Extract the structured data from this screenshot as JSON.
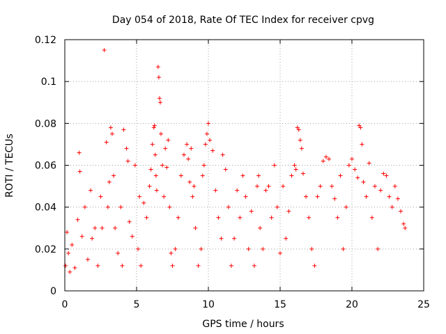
{
  "chart_data": {
    "type": "scatter",
    "title": "Day 054 of 2018, Rate Of TEC Index for receiver cpvg",
    "xlabel": "GPS time / hours",
    "ylabel": "ROTI / TECUs",
    "xlim": [
      0,
      25
    ],
    "ylim": [
      0,
      0.12
    ],
    "xticks": [
      0,
      5,
      10,
      15,
      20,
      25
    ],
    "yticks": [
      0,
      0.02,
      0.04,
      0.06,
      0.08,
      0.1,
      0.12
    ],
    "xtick_labels": [
      "0",
      "5",
      "10",
      "15",
      "20",
      "25"
    ],
    "ytick_labels": [
      "0",
      "0.02",
      "0.04",
      "0.06",
      "0.08",
      "0.1",
      "0.12"
    ],
    "grid": true,
    "marker": "+",
    "series_color": "#ff0000",
    "series": [
      {
        "name": "ROTI",
        "x": [
          0.05,
          0.15,
          0.25,
          0.35,
          0.5,
          0.7,
          0.9,
          1.0,
          1.05,
          1.2,
          1.4,
          1.6,
          1.8,
          1.9,
          2.1,
          2.3,
          2.5,
          2.6,
          2.75,
          2.9,
          3.0,
          3.1,
          3.2,
          3.3,
          3.4,
          3.5,
          3.7,
          3.9,
          4.0,
          4.1,
          4.3,
          4.4,
          4.5,
          4.7,
          4.9,
          5.1,
          5.2,
          5.3,
          5.5,
          5.7,
          5.9,
          6.0,
          6.1,
          6.2,
          6.25,
          6.3,
          6.35,
          6.4,
          6.5,
          6.55,
          6.6,
          6.65,
          6.7,
          6.8,
          6.9,
          7.0,
          7.1,
          7.2,
          7.3,
          7.4,
          7.5,
          7.7,
          7.9,
          8.1,
          8.3,
          8.5,
          8.6,
          8.7,
          8.8,
          8.9,
          9.0,
          9.1,
          9.3,
          9.5,
          9.6,
          9.7,
          9.8,
          9.9,
          10.0,
          10.1,
          10.3,
          10.5,
          10.7,
          10.9,
          11.0,
          11.2,
          11.4,
          11.6,
          11.8,
          12.0,
          12.2,
          12.4,
          12.6,
          12.8,
          13.0,
          13.2,
          13.4,
          13.5,
          13.6,
          13.8,
          14.0,
          14.2,
          14.4,
          14.6,
          14.8,
          15.0,
          15.2,
          15.4,
          15.6,
          15.8,
          16.0,
          16.1,
          16.2,
          16.3,
          16.4,
          16.5,
          16.6,
          16.8,
          17.0,
          17.2,
          17.4,
          17.6,
          17.8,
          18.0,
          18.2,
          18.4,
          18.6,
          18.8,
          19.0,
          19.2,
          19.4,
          19.6,
          19.8,
          20.0,
          20.2,
          20.4,
          20.5,
          20.6,
          20.7,
          20.8,
          21.0,
          21.2,
          21.4,
          21.6,
          21.8,
          22.0,
          22.2,
          22.4,
          22.6,
          22.8,
          23.0,
          23.2,
          23.4,
          23.6,
          23.7
        ],
        "y": [
          0.012,
          0.028,
          0.018,
          0.009,
          0.022,
          0.011,
          0.034,
          0.066,
          0.057,
          0.026,
          0.04,
          0.015,
          0.048,
          0.025,
          0.03,
          0.012,
          0.045,
          0.03,
          0.115,
          0.071,
          0.04,
          0.052,
          0.078,
          0.075,
          0.055,
          0.03,
          0.018,
          0.04,
          0.012,
          0.077,
          0.068,
          0.062,
          0.033,
          0.026,
          0.06,
          0.02,
          0.045,
          0.012,
          0.042,
          0.035,
          0.05,
          0.058,
          0.07,
          0.078,
          0.079,
          0.065,
          0.055,
          0.048,
          0.107,
          0.102,
          0.092,
          0.09,
          0.075,
          0.06,
          0.045,
          0.068,
          0.059,
          0.072,
          0.04,
          0.018,
          0.012,
          0.02,
          0.035,
          0.055,
          0.065,
          0.07,
          0.063,
          0.052,
          0.068,
          0.045,
          0.05,
          0.03,
          0.012,
          0.02,
          0.055,
          0.06,
          0.07,
          0.075,
          0.08,
          0.072,
          0.067,
          0.048,
          0.035,
          0.025,
          0.065,
          0.058,
          0.04,
          0.012,
          0.025,
          0.048,
          0.035,
          0.055,
          0.045,
          0.02,
          0.038,
          0.012,
          0.05,
          0.055,
          0.03,
          0.02,
          0.048,
          0.05,
          0.035,
          0.06,
          0.04,
          0.018,
          0.05,
          0.025,
          0.038,
          0.055,
          0.06,
          0.058,
          0.078,
          0.077,
          0.072,
          0.068,
          0.056,
          0.045,
          0.035,
          0.02,
          0.012,
          0.045,
          0.05,
          0.062,
          0.064,
          0.063,
          0.05,
          0.044,
          0.035,
          0.055,
          0.02,
          0.04,
          0.06,
          0.063,
          0.058,
          0.054,
          0.079,
          0.078,
          0.07,
          0.052,
          0.045,
          0.061,
          0.035,
          0.05,
          0.02,
          0.048,
          0.056,
          0.055,
          0.045,
          0.04,
          0.05,
          0.044,
          0.038,
          0.032,
          0.03
        ]
      }
    ]
  }
}
